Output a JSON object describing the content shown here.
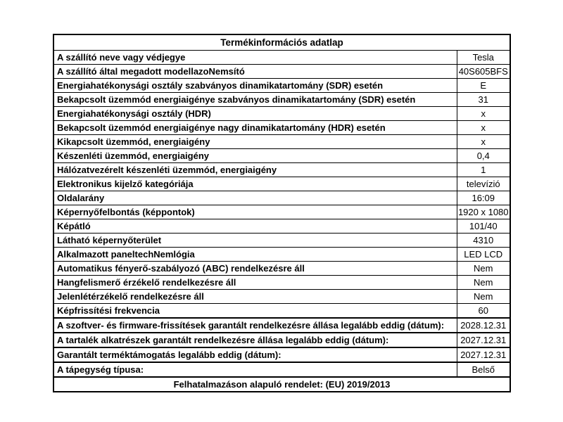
{
  "colors": {
    "background": "#ffffff",
    "border": "#000000",
    "text": "#000000"
  },
  "table": {
    "title": "Termékinformációs adatlap",
    "rows": [
      {
        "label": "A szállító neve vagy védjegye",
        "value": "Tesla"
      },
      {
        "label": "A szállító által megadott modellazoNemsító",
        "value": "40S605BFS"
      },
      {
        "label": "Energiahatékonysági osztály szabványos dinamikatartomány (SDR) esetén",
        "value": "E"
      },
      {
        "label": "Bekapcsolt üzemmód energiaigénye szabványos dinamikatartomány (SDR) esetén",
        "value": "31"
      },
      {
        "label": "Energiahatékonysági osztály (HDR)",
        "value": "x"
      },
      {
        "label": "Bekapcsolt üzemmód energiaigénye nagy dinamikatartomány (HDR) esetén",
        "value": "x"
      },
      {
        "label": "Kikapcsolt üzemmód, energiaigény",
        "value": "x"
      },
      {
        "label": "Készenléti üzemmód, energiaigény",
        "value": "0,4"
      },
      {
        "label": "Hálózatvezérelt készenléti üzemmód, energiaigény",
        "value": "1"
      },
      {
        "label": "Elektronikus kijelző kategóriája",
        "value": "televízió"
      },
      {
        "label": "Oldalarány",
        "value": "16:09"
      },
      {
        "label": "Képernyőfelbontás (képpontok)",
        "value": "1920 x 1080"
      },
      {
        "label": "Képátló",
        "value": "101/40"
      },
      {
        "label": "Látható képernyőterület",
        "value": "4310"
      },
      {
        "label": "Alkalmazott paneltechNemlógia",
        "value": "LED LCD"
      },
      {
        "label": "Automatikus fényerő-szabályozó (ABC) rendelkezésre áll",
        "value": "Nem"
      },
      {
        "label": "Hangfelismerő érzékelő rendelkezésre áll",
        "value": "Nem"
      },
      {
        "label": "Jelenlétérzékelő rendelkezésre áll",
        "value": "Nem"
      },
      {
        "label": "Képfrissítési frekvencia",
        "value": "60"
      },
      {
        "label": "A szoftver- és firmware-frissítések garantált rendelkezésre állása legalább eddig (dátum):",
        "value": "2028.12.31"
      },
      {
        "label": "A tartalék alkatrészek garantált rendelkezésre állása legalább eddig (dátum):",
        "value": "2027.12.31"
      },
      {
        "label": "Garantált terméktámogatás legalább eddig (dátum):",
        "value": "2027.12.31"
      },
      {
        "label": "A tápegység típusa:",
        "value": "Belső"
      }
    ],
    "footer": "Felhatalmazáson alapuló rendelet: (EU) 2019/2013"
  }
}
